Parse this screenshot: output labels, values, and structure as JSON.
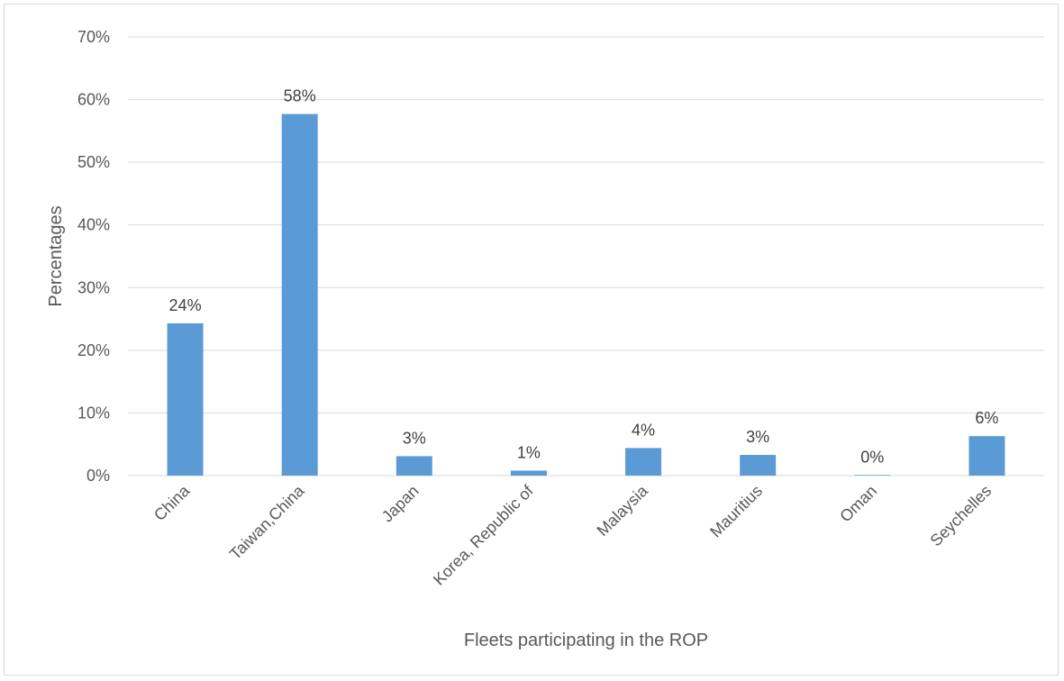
{
  "chart_data": {
    "type": "bar",
    "title": "",
    "xlabel": "Fleets participating in the ROP",
    "ylabel": "Percentages",
    "categories": [
      "China",
      "Taiwan,China",
      "Japan",
      "Korea, Republic of",
      "Malaysia",
      "Mauritius",
      "Oman",
      "Seychelles"
    ],
    "values": [
      24.3,
      57.7,
      3.1,
      0.8,
      4.4,
      3.3,
      0.1,
      6.3
    ],
    "data_labels": [
      "24%",
      "58%",
      "3%",
      "1%",
      "4%",
      "3%",
      "0%",
      "6%"
    ],
    "y_ticks": [
      "0%",
      "10%",
      "20%",
      "30%",
      "40%",
      "50%",
      "60%",
      "70%"
    ],
    "ylim": [
      0,
      70
    ],
    "grid": true,
    "legend": "none",
    "bar_color": "#5b9bd5",
    "grid_color": "#d9d9d9"
  }
}
